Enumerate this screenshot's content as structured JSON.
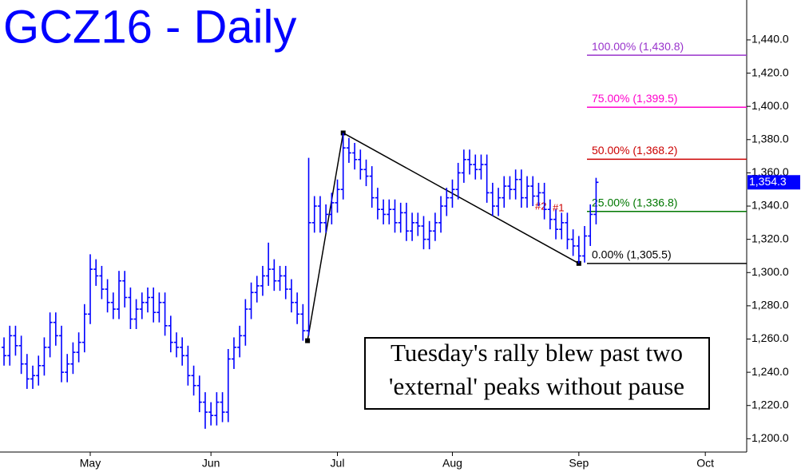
{
  "chart_data": {
    "type": "ohlc",
    "title": "GCZ16 - Daily",
    "color": "#0000ff",
    "ylim": [
      1192,
      1464
    ],
    "yticks": [
      {
        "value": 1200,
        "label": "1,200.0"
      },
      {
        "value": 1220,
        "label": "1,220.0"
      },
      {
        "value": 1240,
        "label": "1,240.0"
      },
      {
        "value": 1260,
        "label": "1,260.0"
      },
      {
        "value": 1280,
        "label": "1,280.0"
      },
      {
        "value": 1300,
        "label": "1,300.0"
      },
      {
        "value": 1320,
        "label": "1,320.0"
      },
      {
        "value": 1340,
        "label": "1,340.0"
      },
      {
        "value": 1360,
        "label": "1,360.0"
      },
      {
        "value": 1380,
        "label": "1,380.0"
      },
      {
        "value": 1400,
        "label": "1,400.0"
      },
      {
        "value": 1420,
        "label": "1,420.0"
      },
      {
        "value": 1440,
        "label": "1,440.0"
      }
    ],
    "xlim": [
      -0.7,
      129.2
    ],
    "xticks": [
      {
        "value": 15,
        "label": "May"
      },
      {
        "value": 36,
        "label": "Jun"
      },
      {
        "value": 58,
        "label": "Jul"
      },
      {
        "value": 78,
        "label": "Aug"
      },
      {
        "value": 100,
        "label": "Sep"
      },
      {
        "value": 122,
        "label": "Oct"
      }
    ],
    "open": [
      1255,
      1250,
      1262,
      1256,
      1245,
      1236,
      1238,
      1244,
      1255,
      1270,
      1262,
      1240,
      1245,
      1252,
      1258,
      1275,
      1302,
      1298,
      1290,
      1282,
      1278,
      1295,
      1285,
      1272,
      1278,
      1282,
      1285,
      1276,
      1282,
      1268,
      1258,
      1255,
      1250,
      1238,
      1232,
      1222,
      1216,
      1214,
      1222,
      1216,
      1248,
      1255,
      1262,
      1278,
      1288,
      1292,
      1298,
      1302,
      1295,
      1298,
      1290,
      1282,
      1275,
      1265,
      1330,
      1340,
      1330,
      1335,
      1342,
      1350,
      1375,
      1372,
      1368,
      1362,
      1358,
      1345,
      1338,
      1335,
      1338,
      1330,
      1336,
      1325,
      1330,
      1328,
      1320,
      1325,
      1330,
      1340,
      1345,
      1350,
      1360,
      1368,
      1365,
      1362,
      1365,
      1348,
      1340,
      1345,
      1352,
      1350,
      1356,
      1345,
      1352,
      1346,
      1348,
      1338,
      1332,
      1326,
      1330,
      1320,
      1316,
      1310,
      1322,
      1335
    ],
    "high": [
      1261,
      1268,
      1268,
      1262,
      1251,
      1244,
      1250,
      1261,
      1276,
      1276,
      1268,
      1251,
      1258,
      1264,
      1281,
      1311,
      1308,
      1304,
      1296,
      1288,
      1301,
      1301,
      1291,
      1284,
      1288,
      1291,
      1291,
      1288,
      1288,
      1274,
      1264,
      1261,
      1256,
      1244,
      1238,
      1228,
      1222,
      1228,
      1228,
      1254,
      1261,
      1268,
      1284,
      1294,
      1298,
      1304,
      1318,
      1308,
      1304,
      1304,
      1296,
      1288,
      1281,
      1369,
      1346,
      1346,
      1341,
      1348,
      1356,
      1384,
      1381,
      1378,
      1374,
      1368,
      1364,
      1351,
      1344,
      1344,
      1344,
      1342,
      1342,
      1336,
      1336,
      1334,
      1331,
      1336,
      1346,
      1351,
      1356,
      1366,
      1374,
      1374,
      1371,
      1371,
      1371,
      1354,
      1351,
      1358,
      1358,
      1362,
      1362,
      1358,
      1358,
      1354,
      1354,
      1344,
      1338,
      1336,
      1336,
      1326,
      1322,
      1328,
      1341,
      1357
    ],
    "low": [
      1244,
      1244,
      1250,
      1239,
      1230,
      1230,
      1232,
      1238,
      1249,
      1256,
      1234,
      1234,
      1239,
      1246,
      1252,
      1269,
      1292,
      1284,
      1276,
      1272,
      1272,
      1279,
      1266,
      1266,
      1272,
      1276,
      1270,
      1270,
      1262,
      1252,
      1249,
      1244,
      1232,
      1226,
      1216,
      1206,
      1208,
      1208,
      1210,
      1210,
      1242,
      1249,
      1256,
      1272,
      1282,
      1286,
      1292,
      1289,
      1289,
      1284,
      1276,
      1269,
      1259,
      1262,
      1324,
      1324,
      1324,
      1329,
      1336,
      1344,
      1366,
      1362,
      1356,
      1352,
      1339,
      1332,
      1329,
      1329,
      1324,
      1324,
      1319,
      1319,
      1322,
      1314,
      1314,
      1319,
      1324,
      1334,
      1339,
      1344,
      1354,
      1359,
      1356,
      1356,
      1342,
      1334,
      1334,
      1339,
      1344,
      1344,
      1339,
      1339,
      1340,
      1340,
      1332,
      1326,
      1320,
      1320,
      1314,
      1310,
      1305.5,
      1306,
      1316,
      1329
    ],
    "close": [
      1250,
      1262,
      1256,
      1245,
      1236,
      1238,
      1244,
      1255,
      1270,
      1262,
      1240,
      1245,
      1252,
      1258,
      1275,
      1302,
      1298,
      1290,
      1282,
      1278,
      1295,
      1285,
      1272,
      1278,
      1282,
      1285,
      1276,
      1282,
      1268,
      1258,
      1255,
      1250,
      1238,
      1232,
      1222,
      1216,
      1214,
      1222,
      1216,
      1248,
      1255,
      1262,
      1278,
      1288,
      1292,
      1298,
      1302,
      1295,
      1298,
      1290,
      1282,
      1275,
      1265,
      1330,
      1340,
      1330,
      1335,
      1342,
      1350,
      1375,
      1372,
      1368,
      1362,
      1358,
      1345,
      1338,
      1335,
      1338,
      1330,
      1336,
      1325,
      1330,
      1328,
      1320,
      1325,
      1330,
      1340,
      1345,
      1350,
      1360,
      1368,
      1365,
      1362,
      1365,
      1348,
      1340,
      1345,
      1352,
      1350,
      1356,
      1345,
      1352,
      1346,
      1348,
      1338,
      1332,
      1326,
      1330,
      1320,
      1316,
      1310,
      1322,
      1335,
      1354.3
    ],
    "last_label": "1,354.3",
    "levels": [
      {
        "label": "100.00% (1,430.8)",
        "value": 1430.8,
        "color": "#9933cc"
      },
      {
        "label": "75.00% (1,399.5)",
        "value": 1399.5,
        "color": "#ff00cc"
      },
      {
        "label": "50.00% (1,368.2)",
        "value": 1368.2,
        "color": "#cc0000"
      },
      {
        "label": "25.00% (1,336.8)",
        "value": 1336.8,
        "color": "#007700"
      },
      {
        "label": "0.00% (1,305.5)",
        "value": 1305.5,
        "color": "#000000"
      }
    ],
    "pivots": {
      "x": [
        52.8,
        59,
        100
      ],
      "y": [
        1259,
        1384,
        1305.5
      ]
    },
    "peak_labels": [
      "#2",
      "#1"
    ],
    "note": [
      "Tuesday's rally blew past two",
      "'external' peaks without pause"
    ]
  }
}
